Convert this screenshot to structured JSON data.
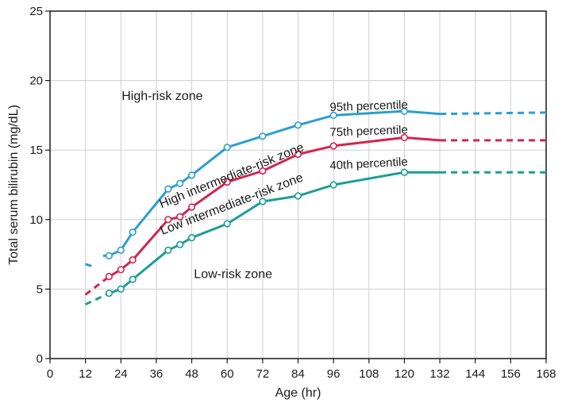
{
  "chart_data": {
    "type": "line",
    "title": "",
    "xlabel": "Age (hr)",
    "ylabel": "Total serum bilirubin (mg/dL)",
    "xlim": [
      0,
      168
    ],
    "ylim": [
      0,
      25
    ],
    "x_ticks": [
      0,
      12,
      24,
      36,
      48,
      60,
      72,
      84,
      96,
      108,
      120,
      132,
      144,
      156,
      168
    ],
    "y_ticks": [
      0,
      5,
      10,
      15,
      20,
      25
    ],
    "grid": true,
    "legend": "none",
    "series": [
      {
        "name": "95th percentile",
        "color": "#2b9ed1",
        "dashed_start": [
          [
            12,
            6.8
          ],
          [
            15,
            6.6
          ]
        ],
        "dashed_end": [
          [
            132,
            17.6
          ],
          [
            168,
            17.7
          ]
        ],
        "points": [
          [
            18,
            7.4
          ],
          [
            20,
            7.4
          ],
          [
            24,
            7.8
          ],
          [
            28,
            9.1
          ],
          [
            40,
            12.2
          ],
          [
            44,
            12.6
          ],
          [
            48,
            13.2
          ],
          [
            60,
            15.2
          ],
          [
            72,
            16.0
          ],
          [
            84,
            16.8
          ],
          [
            96,
            17.5
          ],
          [
            120,
            17.8
          ],
          [
            132,
            17.6
          ]
        ],
        "markers": [
          [
            20,
            7.4
          ],
          [
            24,
            7.8
          ],
          [
            28,
            9.1
          ],
          [
            40,
            12.2
          ],
          [
            44,
            12.6
          ],
          [
            48,
            13.2
          ],
          [
            60,
            15.2
          ],
          [
            72,
            16.0
          ],
          [
            84,
            16.8
          ],
          [
            96,
            17.5
          ],
          [
            120,
            17.8
          ]
        ]
      },
      {
        "name": "75th percentile",
        "color": "#d42450",
        "dashed_start": [
          [
            12,
            4.6
          ],
          [
            20,
            5.9
          ]
        ],
        "dashed_end": [
          [
            132,
            15.7
          ],
          [
            168,
            15.7
          ]
        ],
        "points": [
          [
            20,
            5.9
          ],
          [
            24,
            6.4
          ],
          [
            28,
            7.1
          ],
          [
            40,
            10.0
          ],
          [
            44,
            10.2
          ],
          [
            48,
            10.9
          ],
          [
            60,
            12.7
          ],
          [
            72,
            13.5
          ],
          [
            84,
            14.7
          ],
          [
            96,
            15.3
          ],
          [
            120,
            15.9
          ],
          [
            132,
            15.7
          ]
        ],
        "markers": [
          [
            20,
            5.9
          ],
          [
            24,
            6.4
          ],
          [
            28,
            7.1
          ],
          [
            40,
            10.0
          ],
          [
            44,
            10.2
          ],
          [
            48,
            10.9
          ],
          [
            60,
            12.7
          ],
          [
            72,
            13.5
          ],
          [
            84,
            14.7
          ],
          [
            96,
            15.3
          ],
          [
            120,
            15.9
          ]
        ]
      },
      {
        "name": "40th percentile",
        "color": "#1a9e96",
        "dashed_start": [
          [
            12,
            3.9
          ],
          [
            20,
            4.7
          ]
        ],
        "dashed_end": [
          [
            132,
            13.4
          ],
          [
            168,
            13.4
          ]
        ],
        "points": [
          [
            20,
            4.7
          ],
          [
            24,
            5.0
          ],
          [
            28,
            5.7
          ],
          [
            40,
            7.8
          ],
          [
            44,
            8.2
          ],
          [
            48,
            8.7
          ],
          [
            60,
            9.7
          ],
          [
            72,
            11.3
          ],
          [
            84,
            11.7
          ],
          [
            96,
            12.5
          ],
          [
            120,
            13.4
          ],
          [
            132,
            13.4
          ]
        ],
        "markers": [
          [
            20,
            4.7
          ],
          [
            24,
            5.0
          ],
          [
            28,
            5.7
          ],
          [
            40,
            7.8
          ],
          [
            44,
            8.2
          ],
          [
            48,
            8.7
          ],
          [
            60,
            9.7
          ],
          [
            72,
            11.3
          ],
          [
            84,
            11.7
          ],
          [
            96,
            12.5
          ],
          [
            120,
            13.4
          ]
        ]
      }
    ],
    "annotations": [
      {
        "key": "high_risk",
        "text": "High-risk zone",
        "x": 38,
        "y": 18.6,
        "rotate": 0,
        "anchor": "middle"
      },
      {
        "key": "high_intermediate",
        "text": "High intermediate-risk zone",
        "x": 62,
        "y": 12.9,
        "rotate": -22,
        "anchor": "middle"
      },
      {
        "key": "low_intermediate",
        "text": "Low intermediate-risk zone",
        "x": 62,
        "y": 10.85,
        "rotate": -21,
        "anchor": "middle"
      },
      {
        "key": "low_risk",
        "text": "Low-risk zone",
        "x": 62,
        "y": 5.8,
        "rotate": 0,
        "anchor": "middle"
      },
      {
        "key": "p95",
        "text": "95th percentile",
        "x": 108,
        "y": 17.9,
        "rotate": -2,
        "anchor": "middle"
      },
      {
        "key": "p75",
        "text": "75th percentile",
        "x": 108,
        "y": 16.1,
        "rotate": -2,
        "anchor": "middle"
      },
      {
        "key": "p40",
        "text": "40th percentile",
        "x": 108,
        "y": 13.75,
        "rotate": -3,
        "anchor": "middle"
      }
    ]
  }
}
